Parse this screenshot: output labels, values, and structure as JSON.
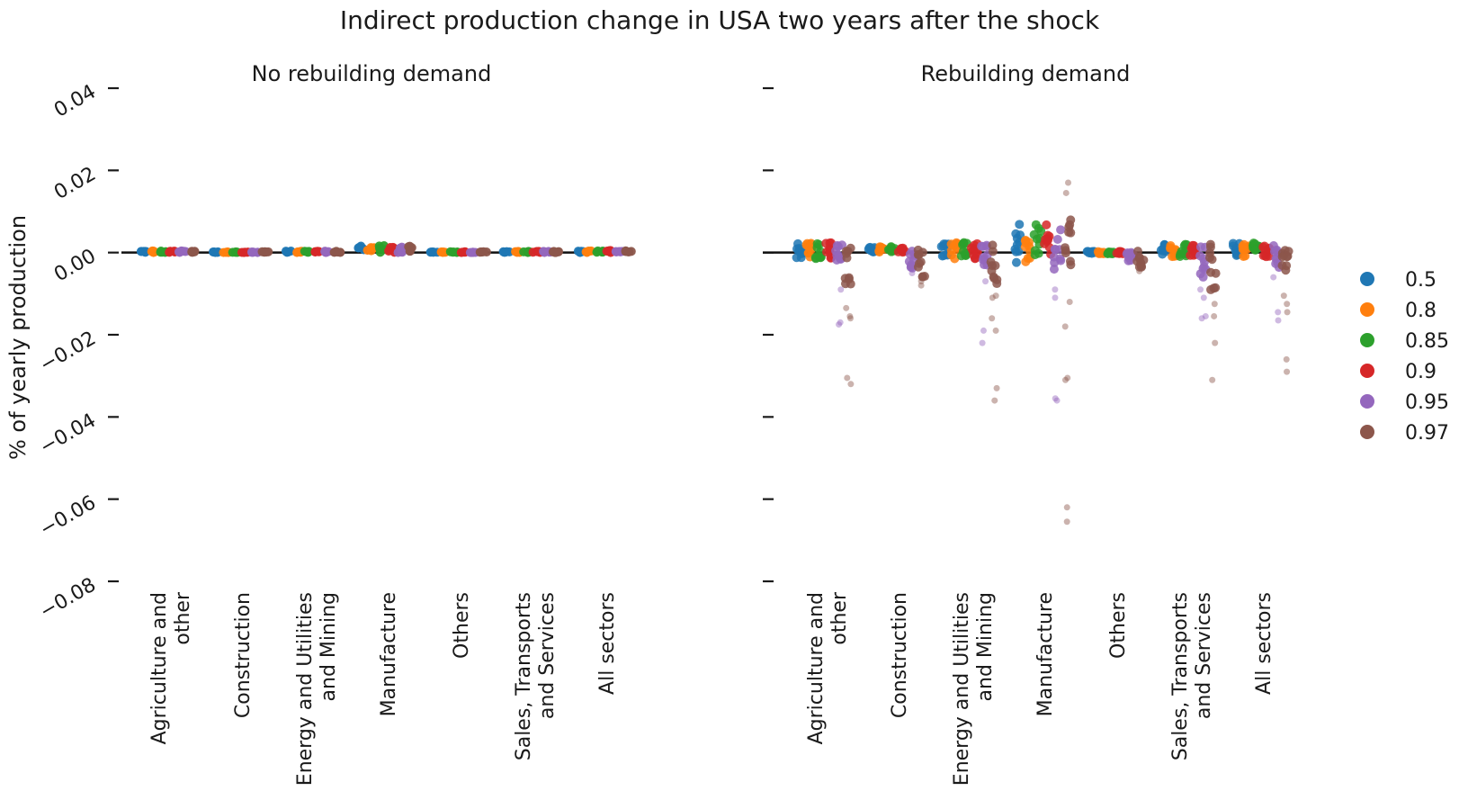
{
  "chart_data": {
    "type": "scatter",
    "title": "Indirect production change in USA two years after the shock",
    "ylabel": "% of yearly production",
    "ylim": [
      -0.08,
      0.04
    ],
    "yticks": [
      0.04,
      0.02,
      0.0,
      -0.02,
      -0.04,
      -0.06,
      -0.08
    ],
    "ytick_labels": [
      "0.04",
      "0.02",
      "0.00",
      "−0.02",
      "−0.04",
      "−0.06",
      "−0.08"
    ],
    "categories": [
      "Agriculture and other",
      "Construction",
      "Energy and Utilities and Mining",
      "Manufacture",
      "Others",
      "Sales, Transports and Services",
      "All sectors"
    ],
    "category_label_lines": [
      [
        "Agriculture and",
        "other"
      ],
      [
        "Construction"
      ],
      [
        "Energy and Utilities",
        "and Mining"
      ],
      [
        "Manufacture"
      ],
      [
        "Others"
      ],
      [
        "Sales, Transports",
        "and Services"
      ],
      [
        "All sectors"
      ]
    ],
    "legend": {
      "placement": "right",
      "entries": [
        {
          "label": "0.5",
          "color": "#1f77b4"
        },
        {
          "label": "0.8",
          "color": "#ff7f0e"
        },
        {
          "label": "0.85",
          "color": "#2ca02c"
        },
        {
          "label": "0.9",
          "color": "#d62728"
        },
        {
          "label": "0.95",
          "color": "#9467bd"
        },
        {
          "label": "0.97",
          "color": "#8c564b"
        }
      ]
    },
    "panels": [
      {
        "subtitle": "No rebuilding demand",
        "series": [
          {
            "name": "0.5",
            "ranges": [
              [
                0,
                0.0004
              ],
              [
                0,
                0.0002
              ],
              [
                0,
                0.0004
              ],
              [
                0,
                0.0016
              ],
              [
                0,
                0.0002
              ],
              [
                0,
                0.0003
              ],
              [
                0,
                0.0005
              ]
            ],
            "outliers": [
              [],
              [],
              [],
              [],
              [],
              [],
              []
            ]
          },
          {
            "name": "0.8",
            "ranges": [
              [
                0,
                0.0004
              ],
              [
                0,
                0.0002
              ],
              [
                0,
                0.0004
              ],
              [
                0,
                0.0018
              ],
              [
                0,
                0.0002
              ],
              [
                0,
                0.0003
              ],
              [
                0,
                0.0005
              ]
            ],
            "outliers": [
              [],
              [],
              [],
              [],
              [],
              [],
              []
            ]
          },
          {
            "name": "0.85",
            "ranges": [
              [
                0,
                0.0004
              ],
              [
                0,
                0.0002
              ],
              [
                0,
                0.0004
              ],
              [
                0,
                0.0018
              ],
              [
                0,
                0.0002
              ],
              [
                0,
                0.0003
              ],
              [
                0,
                0.0005
              ]
            ],
            "outliers": [
              [],
              [],
              [],
              [],
              [],
              [],
              []
            ]
          },
          {
            "name": "0.9",
            "ranges": [
              [
                0,
                0.0004
              ],
              [
                0,
                0.0002
              ],
              [
                0,
                0.0004
              ],
              [
                0,
                0.0016
              ],
              [
                0,
                0.0002
              ],
              [
                0,
                0.0003
              ],
              [
                0,
                0.0005
              ]
            ],
            "outliers": [
              [],
              [],
              [],
              [],
              [],
              [],
              []
            ]
          },
          {
            "name": "0.95",
            "ranges": [
              [
                0,
                0.0004
              ],
              [
                0,
                0.0002
              ],
              [
                0,
                0.0004
              ],
              [
                0,
                0.0016
              ],
              [
                0,
                0.0002
              ],
              [
                0,
                0.0003
              ],
              [
                0,
                0.0005
              ]
            ],
            "outliers": [
              [],
              [],
              [],
              [],
              [],
              [],
              []
            ]
          },
          {
            "name": "0.97",
            "ranges": [
              [
                0,
                0.0004
              ],
              [
                0,
                0.0002
              ],
              [
                0,
                0.0004
              ],
              [
                0,
                0.0016
              ],
              [
                0,
                0.0002
              ],
              [
                0,
                0.0003
              ],
              [
                0,
                0.0005
              ]
            ],
            "outliers": [
              [],
              [],
              [],
              [],
              [],
              [],
              []
            ]
          }
        ]
      },
      {
        "subtitle": "Rebuilding demand",
        "series": [
          {
            "name": "0.5",
            "ranges": [
              [
                -0.0015,
                0.0025
              ],
              [
                0,
                0.0015
              ],
              [
                -0.0015,
                0.0025
              ],
              [
                -0.0025,
                0.0075
              ],
              [
                -0.0003,
                0.0003
              ],
              [
                -0.001,
                0.002
              ],
              [
                -0.001,
                0.0025
              ]
            ],
            "outliers": [
              [],
              [],
              [],
              [],
              [],
              [],
              []
            ]
          },
          {
            "name": "0.8",
            "ranges": [
              [
                -0.0015,
                0.0025
              ],
              [
                0,
                0.0015
              ],
              [
                -0.0015,
                0.0025
              ],
              [
                -0.0025,
                0.0075
              ],
              [
                -0.0003,
                0.0003
              ],
              [
                -0.001,
                0.002
              ],
              [
                -0.001,
                0.0025
              ]
            ],
            "outliers": [
              [],
              [],
              [],
              [],
              [],
              [],
              []
            ]
          },
          {
            "name": "0.85",
            "ranges": [
              [
                -0.0015,
                0.0025
              ],
              [
                0,
                0.0015
              ],
              [
                -0.0015,
                0.0025
              ],
              [
                -0.0025,
                0.0075
              ],
              [
                -0.0003,
                0.0003
              ],
              [
                -0.001,
                0.002
              ],
              [
                -0.001,
                0.0025
              ]
            ],
            "outliers": [
              [],
              [],
              [],
              [],
              [],
              [],
              []
            ]
          },
          {
            "name": "0.9",
            "ranges": [
              [
                -0.0015,
                0.0025
              ],
              [
                0,
                0.0015
              ],
              [
                -0.0015,
                0.0025
              ],
              [
                -0.0025,
                0.0075
              ],
              [
                -0.0003,
                0.0003
              ],
              [
                -0.001,
                0.002
              ],
              [
                -0.001,
                0.0025
              ]
            ],
            "outliers": [
              [],
              [],
              [],
              [],
              [],
              [],
              []
            ]
          },
          {
            "name": "0.95",
            "ranges": [
              [
                -0.003,
                0.002
              ],
              [
                -0.004,
                0.001
              ],
              [
                -0.004,
                0.002
              ],
              [
                -0.005,
                0.006
              ],
              [
                -0.002,
                0.0005
              ],
              [
                -0.006,
                0.002
              ],
              [
                -0.004,
                0.002
              ]
            ],
            "outliers": [
              [
                -0.009,
                -0.0175,
                -0.017
              ],
              [
                -0.005
              ],
              [
                -0.007,
                -0.019,
                -0.022
              ],
              [
                -0.009,
                -0.011,
                -0.0355,
                -0.036
              ],
              [],
              [
                -0.009,
                -0.011,
                -0.0155,
                -0.016
              ],
              [
                -0.006,
                -0.0145,
                -0.0165
              ]
            ]
          },
          {
            "name": "0.97",
            "ranges": [
              [
                -0.008,
                0.002
              ],
              [
                -0.006,
                0.001
              ],
              [
                -0.008,
                0.002
              ],
              [
                -0.004,
                0.008
              ],
              [
                -0.004,
                0.0005
              ],
              [
                -0.01,
                0.002
              ],
              [
                -0.008,
                0.002
              ]
            ],
            "outliers": [
              [
                -0.0135,
                -0.0155,
                -0.016,
                -0.0305,
                -0.032
              ],
              [
                -0.007,
                -0.008
              ],
              [
                -0.0105,
                -0.011,
                -0.016,
                -0.019,
                -0.033,
                -0.036
              ],
              [
                -0.012,
                -0.018,
                -0.0305,
                -0.031,
                -0.062,
                -0.0655,
                0.0145,
                0.017
              ],
              [
                -0.0045
              ],
              [
                -0.0125,
                -0.0155,
                -0.022,
                -0.031
              ],
              [
                -0.0105,
                -0.0125,
                -0.0145,
                -0.026,
                -0.029
              ]
            ]
          }
        ]
      }
    ]
  }
}
